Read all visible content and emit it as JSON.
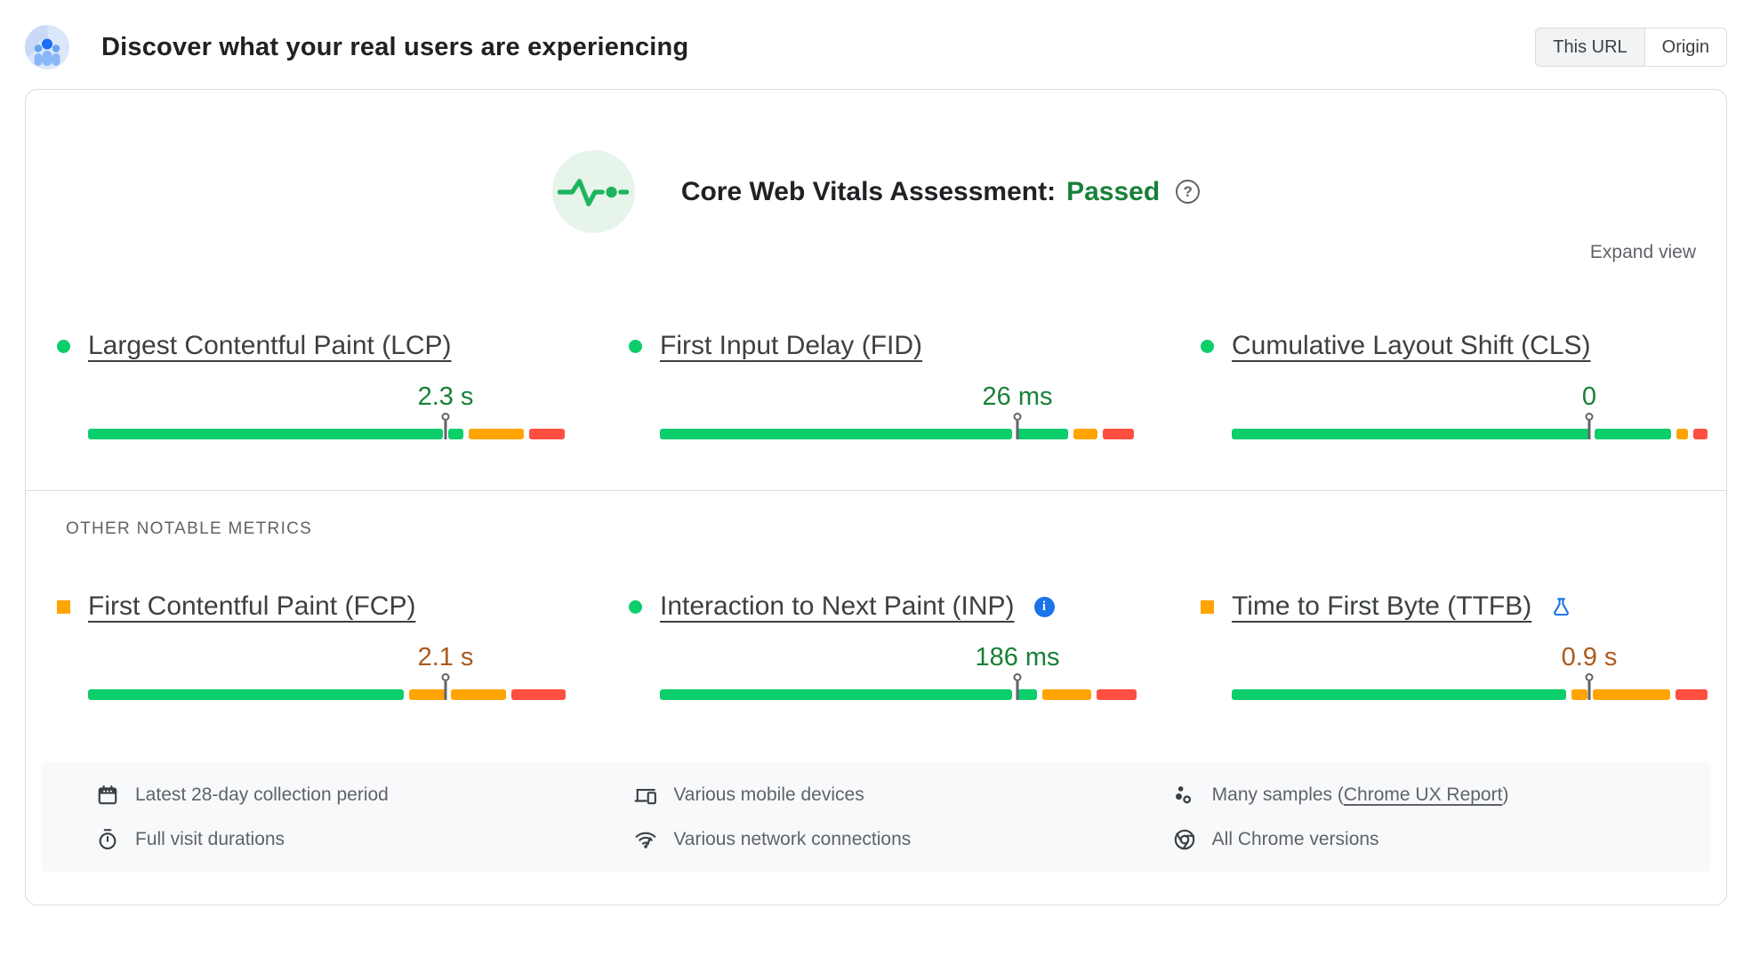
{
  "header": {
    "logo_icon": "crux-users-icon",
    "title": "Discover what your real users are experiencing",
    "toggle": {
      "this_url": "This URL",
      "origin": "Origin",
      "selected": "This URL"
    }
  },
  "assessment": {
    "icon": "pulse-icon",
    "label": "Core Web Vitals Assessment:",
    "status": "Passed",
    "help_icon": "help-icon",
    "expand_label": "Expand view"
  },
  "core_metrics": [
    {
      "id": "lcp",
      "name": "Largest Contentful Paint (LCP)",
      "value": "2.3 s",
      "rating": "good",
      "bullet": "circle",
      "marker_pct": 75,
      "segments": [
        {
          "color": "green",
          "pct": 74.5
        },
        {
          "color": "green",
          "pct": 3.2
        },
        {
          "color": "orange",
          "pct": 11.5
        },
        {
          "color": "red",
          "pct": 7.5
        }
      ]
    },
    {
      "id": "fid",
      "name": "First Input Delay (FID)",
      "value": "26 ms",
      "rating": "good",
      "bullet": "circle",
      "marker_pct": 75,
      "segments": [
        {
          "color": "green",
          "pct": 73.9
        },
        {
          "color": "green",
          "pct": 10.6
        },
        {
          "color": "orange",
          "pct": 5.1
        },
        {
          "color": "red",
          "pct": 6.4
        }
      ]
    },
    {
      "id": "cls",
      "name": "Cumulative Layout Shift (CLS)",
      "value": "0",
      "rating": "good",
      "bullet": "circle",
      "marker_pct": 75,
      "segments": [
        {
          "color": "green",
          "pct": 75.0
        },
        {
          "color": "green",
          "pct": 16.0
        },
        {
          "color": "orange",
          "pct": 2.5
        },
        {
          "color": "red",
          "pct": 3.0
        }
      ]
    }
  ],
  "other_metrics_label": "OTHER NOTABLE METRICS",
  "other_metrics": [
    {
      "id": "fcp",
      "name": "First Contentful Paint (FCP)",
      "value": "2.1 s",
      "rating": "average",
      "bullet": "square",
      "marker_pct": 75,
      "segments": [
        {
          "color": "green",
          "pct": 66.2
        },
        {
          "color": "orange",
          "pct": 7.6
        },
        {
          "color": "orange",
          "pct": 11.6
        },
        {
          "color": "red",
          "pct": 11.4
        }
      ]
    },
    {
      "id": "inp",
      "name": "Interaction to Next Paint (INP)",
      "value": "186 ms",
      "rating": "good",
      "bullet": "circle",
      "title_icon": "info-icon",
      "marker_pct": 75,
      "segments": [
        {
          "color": "green",
          "pct": 73.8
        },
        {
          "color": "green",
          "pct": 4.2
        },
        {
          "color": "orange",
          "pct": 10.2
        },
        {
          "color": "red",
          "pct": 8.4
        }
      ]
    },
    {
      "id": "ttfb",
      "name": "Time to First Byte (TTFB)",
      "value": "0.9 s",
      "rating": "average",
      "bullet": "square",
      "title_icon": "flask-icon",
      "marker_pct": 75,
      "segments": [
        {
          "color": "green",
          "pct": 70.2
        },
        {
          "color": "orange",
          "pct": 3.4
        },
        {
          "color": "orange",
          "pct": 16.2
        },
        {
          "color": "red",
          "pct": 6.6
        }
      ]
    }
  ],
  "footnotes": [
    {
      "icon": "calendar-icon",
      "text": "Latest 28-day collection period"
    },
    {
      "icon": "stopwatch-icon",
      "text": "Full visit durations"
    },
    {
      "icon": "devices-icon",
      "text": "Various mobile devices"
    },
    {
      "icon": "network-icon",
      "text": "Various network connections"
    },
    {
      "icon": "samples-icon",
      "text_before": "Many samples (",
      "link": "Chrome UX Report",
      "text_after": ")"
    },
    {
      "icon": "chrome-icon",
      "text": "All Chrome versions"
    }
  ],
  "colors": {
    "good_bar": "#0cce6b",
    "average_bar": "#ffa400",
    "poor_bar": "#ff4e42",
    "good_text": "#188038",
    "average_text": "#ab5a1e",
    "link_blue": "#1a73e8",
    "border": "#dadce0",
    "muted_text": "#5f6368",
    "footer_bg": "#f8f9fa"
  }
}
